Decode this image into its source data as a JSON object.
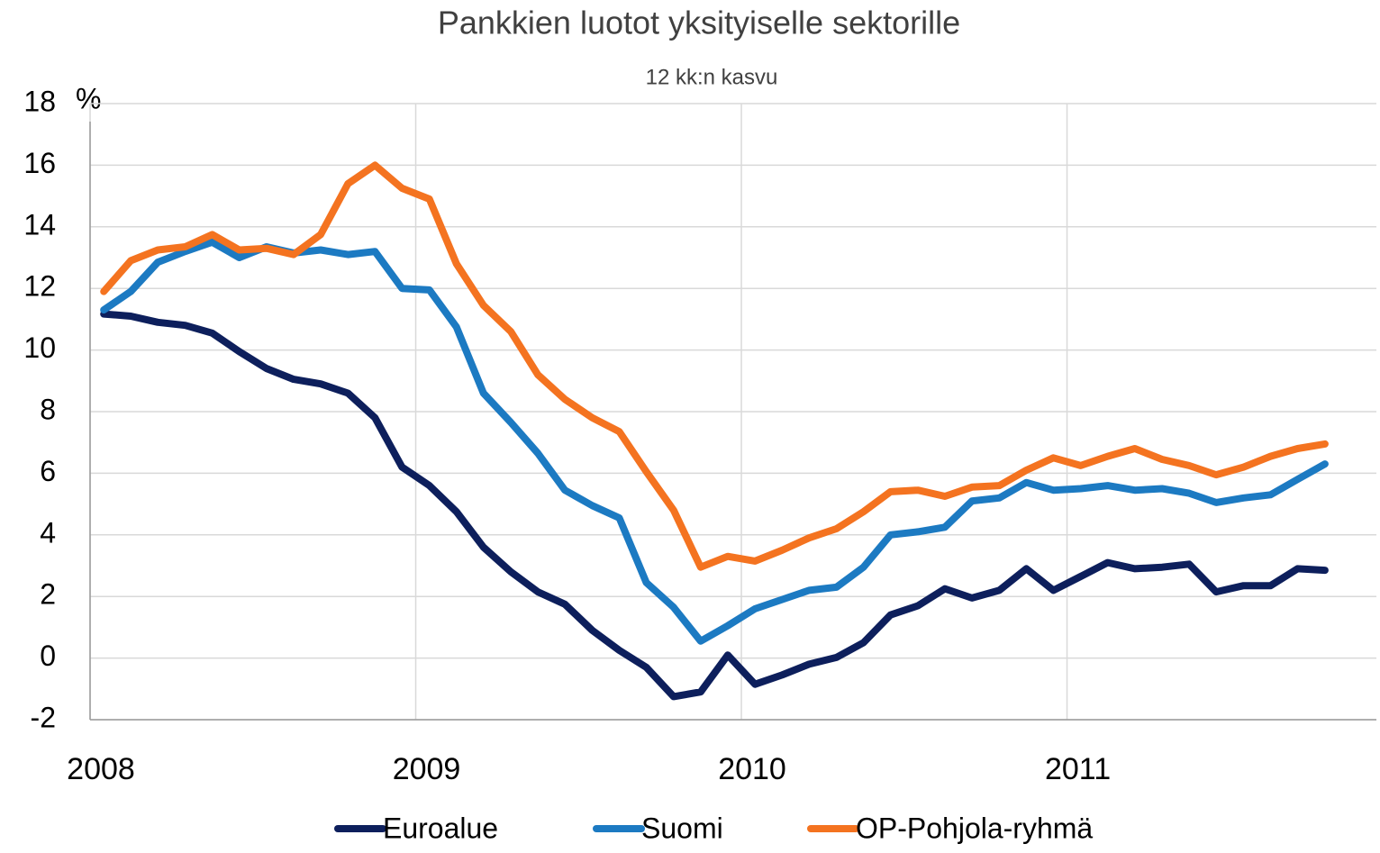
{
  "chart_data": {
    "type": "line",
    "title": "Pankkien luotot yksityiselle sektorille",
    "subtitle": "12 kk:n kasvu",
    "y_unit": "%",
    "x": [
      2008.042,
      2008.125,
      2008.208,
      2008.292,
      2008.375,
      2008.458,
      2008.542,
      2008.625,
      2008.708,
      2008.792,
      2008.875,
      2008.958,
      2009.042,
      2009.125,
      2009.208,
      2009.292,
      2009.375,
      2009.458,
      2009.542,
      2009.625,
      2009.708,
      2009.792,
      2009.875,
      2009.958,
      2010.042,
      2010.125,
      2010.208,
      2010.292,
      2010.375,
      2010.458,
      2010.542,
      2010.625,
      2010.708,
      2010.792,
      2010.875,
      2010.958,
      2011.042,
      2011.125,
      2011.208,
      2011.292,
      2011.375,
      2011.458,
      2011.542,
      2011.625,
      2011.708,
      2011.792
    ],
    "series": [
      {
        "name": "Euroalue",
        "color": "#0d1f5c",
        "values": [
          11.17,
          11.1,
          10.9,
          10.8,
          10.55,
          9.95,
          9.4,
          9.05,
          8.9,
          8.6,
          7.8,
          6.2,
          5.6,
          4.75,
          3.6,
          2.8,
          2.15,
          1.75,
          0.9,
          0.25,
          -0.3,
          -1.25,
          -1.1,
          0.1,
          -0.85,
          -0.55,
          -0.2,
          0.02,
          0.5,
          1.4,
          1.7,
          2.25,
          1.95,
          2.2,
          2.9,
          2.2,
          2.65,
          3.1,
          2.9,
          2.95,
          3.05,
          2.15,
          2.35,
          2.35,
          2.9,
          2.85
        ]
      },
      {
        "name": "Suomi",
        "color": "#1c7ac2",
        "values": [
          11.3,
          11.9,
          12.85,
          13.2,
          13.5,
          13.0,
          13.35,
          13.15,
          13.25,
          13.1,
          13.2,
          12.0,
          11.95,
          10.75,
          8.6,
          7.65,
          6.65,
          5.45,
          4.95,
          4.55,
          2.45,
          1.65,
          0.55,
          1.05,
          1.6,
          1.9,
          2.2,
          2.3,
          2.95,
          4.0,
          4.1,
          4.25,
          5.1,
          5.2,
          5.7,
          5.45,
          5.5,
          5.6,
          5.45,
          5.5,
          5.35,
          5.05,
          5.2,
          5.3,
          5.8,
          6.3
        ]
      },
      {
        "name": "OP-Pohjola-ryhmä",
        "color": "#f47320",
        "values": [
          11.9,
          12.9,
          13.25,
          13.35,
          13.75,
          13.25,
          13.3,
          13.1,
          13.75,
          15.4,
          16.0,
          15.25,
          14.9,
          12.8,
          11.45,
          10.6,
          9.2,
          8.4,
          7.8,
          7.35,
          6.05,
          4.8,
          2.95,
          3.3,
          3.15,
          3.5,
          3.9,
          4.2,
          4.75,
          5.4,
          5.45,
          5.25,
          5.55,
          5.6,
          6.1,
          6.5,
          6.25,
          6.55,
          6.8,
          6.45,
          6.25,
          5.95,
          6.2,
          6.55,
          6.8,
          6.95
        ]
      }
    ],
    "xlim": [
      2008,
      2011.95
    ],
    "xticks": [
      2008,
      2009,
      2010,
      2011
    ],
    "ylim": [
      -2,
      18
    ],
    "yticks": [
      -2,
      0,
      2,
      4,
      6,
      8,
      10,
      12,
      14,
      16,
      18
    ],
    "grid": true,
    "legend": "bottom"
  }
}
